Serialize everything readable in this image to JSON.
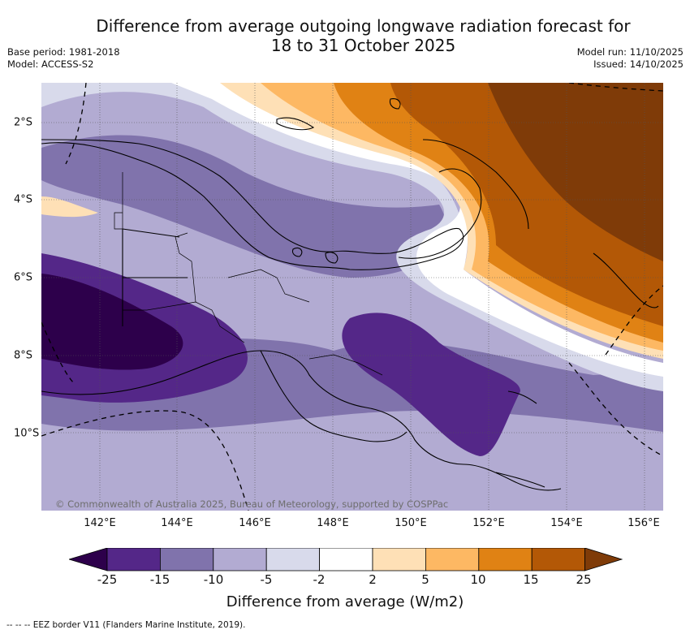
{
  "title": {
    "line1": "Difference from average outgoing longwave radiation forecast for",
    "line2": "18 to 31 October 2025"
  },
  "meta": {
    "base_period": "Base period: 1981-2018",
    "model": "Model: ACCESS-S2",
    "model_run": "Model run: 11/10/2025",
    "issued": "Issued: 14/10/2025"
  },
  "map": {
    "copyright": "© Commonwealth of Australia 2025, Bureau of Meteorology, supported by COSPPac",
    "lon_labels": [
      "142°E",
      "144°E",
      "146°E",
      "148°E",
      "150°E",
      "152°E",
      "154°E",
      "156°E"
    ],
    "lat_labels": [
      "2°S",
      "4°S",
      "6°S",
      "8°S",
      "10°S"
    ]
  },
  "colorbar": {
    "title": "Difference from average (W/m2)",
    "tick_labels": [
      "-25",
      "-15",
      "-10",
      "-5",
      "-2",
      "2",
      "5",
      "10",
      "15",
      "25"
    ],
    "colors": {
      "lt_-25": "#2d004b",
      "-25_-15": "#542788",
      "-15_-10": "#8073ac",
      "-10_-5": "#b2abd2",
      "-5_-2": "#d8daeb",
      "-2_2": "#ffffff",
      "2_5": "#fee0b6",
      "5_10": "#fdb863",
      "10_15": "#e08214",
      "15_25": "#b35806",
      "gt_25": "#7f3b08"
    }
  },
  "footer": {
    "eez_legend": "--  --  -- EEZ border V11 (Flanders Marine Institute, 2019)."
  }
}
